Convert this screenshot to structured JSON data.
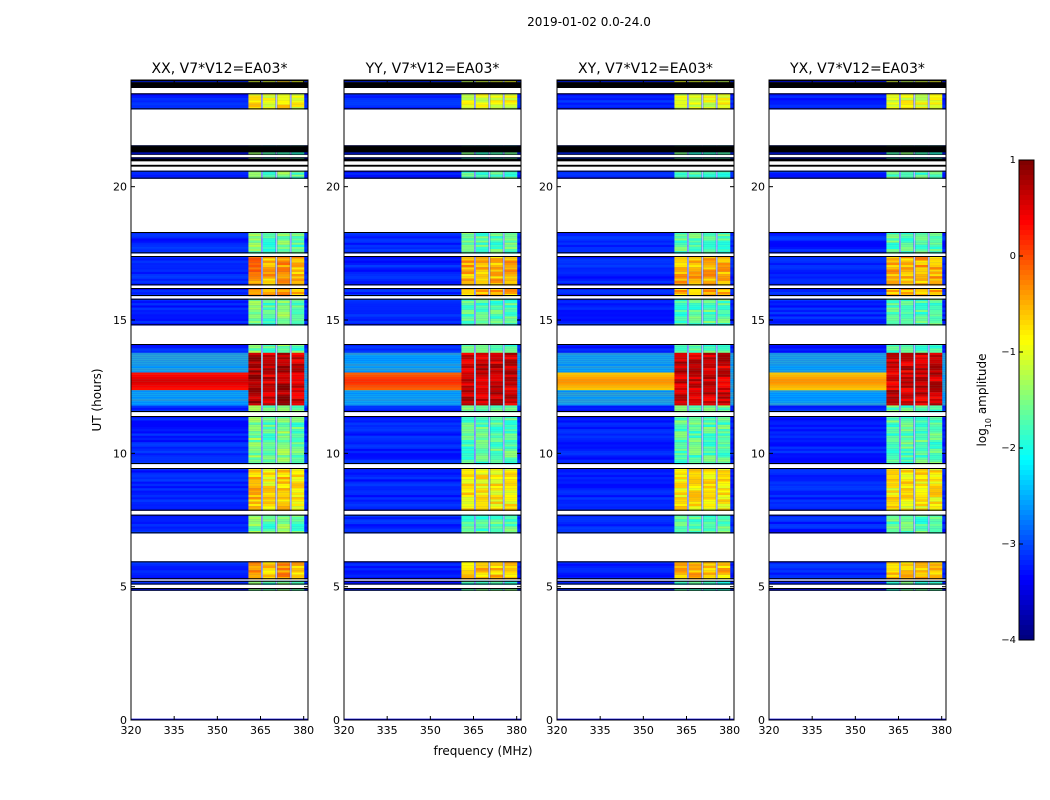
{
  "chart_data": {
    "type": "heatmap",
    "title": "2019-01-02 0.0-24.0",
    "xlabel": "frequency (MHz)",
    "ylabel": "UT (hours)",
    "xlim": [
      320,
      381.5
    ],
    "ylim": [
      0,
      24
    ],
    "x_ticks": [
      "320",
      "335",
      "350",
      "365",
      "380"
    ],
    "x_tick_values": [
      320,
      335,
      350,
      365,
      380
    ],
    "y_ticks": [
      "0",
      "5",
      "10",
      "15",
      "20"
    ],
    "y_tick_values": [
      0,
      5,
      10,
      15,
      20
    ],
    "colorbar": {
      "label_prefix": "log",
      "label_sub": "10",
      "label_suffix": " amplitude",
      "range": [
        -4,
        1
      ],
      "ticks": [
        "1",
        "0",
        "−1",
        "−2",
        "−3",
        "−4"
      ],
      "tick_values": [
        1,
        0,
        -1,
        -2,
        -3,
        -4
      ]
    },
    "panels": [
      {
        "name": "XX",
        "title": "XX, V7*V12=EA03*"
      },
      {
        "name": "YY",
        "title": "YY, V7*V12=EA03*"
      },
      {
        "name": "XY",
        "title": "XY, V7*V12=EA03*"
      },
      {
        "name": "YX",
        "title": "YX, V7*V12=EA03*"
      }
    ],
    "data_bands_hours": [
      [
        4.85,
        4.95
      ],
      [
        5.08,
        5.22
      ],
      [
        5.28,
        5.95
      ],
      [
        7.0,
        7.7
      ],
      [
        7.85,
        9.45
      ],
      [
        9.6,
        11.4
      ],
      [
        11.55,
        14.1
      ],
      [
        14.8,
        15.8
      ],
      [
        15.9,
        16.2
      ],
      [
        16.3,
        17.4
      ],
      [
        17.5,
        18.3
      ],
      [
        20.3,
        20.6
      ],
      [
        21.0,
        21.1
      ],
      [
        21.2,
        21.55
      ],
      [
        22.9,
        23.5
      ],
      [
        23.9,
        24.0
      ]
    ],
    "empty_hours": [
      [
        0.05,
        4.85
      ],
      [
        5.95,
        7.0
      ],
      [
        18.3,
        20.3
      ],
      [
        21.55,
        22.9
      ]
    ],
    "rfi_channels_mhz": [
      363,
      368,
      373,
      378
    ],
    "rfi_band_mhz": [
      362.5,
      380.5
    ],
    "strong_event_hours": [
      11.8,
      13.8
    ],
    "peak_hours": 12.7
  }
}
